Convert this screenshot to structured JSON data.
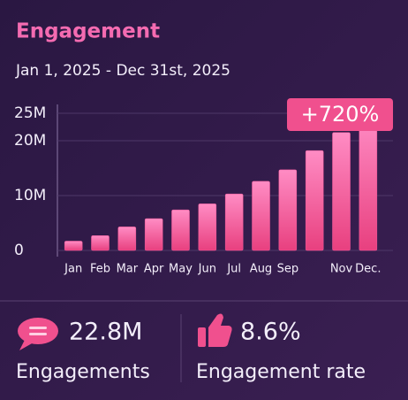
{
  "chart_data": {
    "type": "bar",
    "title": "Engagement",
    "subtitle": "Jan 1, 2025 - Dec 31st, 2025",
    "annotation": "+720%",
    "categories": [
      "Jan",
      "Feb",
      "Mar",
      "Apr",
      "May",
      "Jun",
      "Jul",
      "Aug",
      "Sep",
      null,
      "Nov",
      "Dec."
    ],
    "values": [
      1700000,
      2700000,
      4300000,
      5800000,
      7400000,
      8500000,
      10300000,
      12600000,
      14700000,
      18200000,
      21500000,
      24500000
    ],
    "color": "#f4589a",
    "ylim": [
      0,
      25000000
    ],
    "yticks": [
      0,
      {
        "value": 10000000,
        "label": "10M"
      },
      {
        "value": 20000000,
        "label": "20M"
      },
      {
        "value": 25000000,
        "label": "25M"
      }
    ],
    "grid": true
  },
  "stats": [
    {
      "value": "22.8M",
      "label": "Engagements"
    },
    {
      "value": "8.6%",
      "label": "Engagement rate"
    }
  ]
}
